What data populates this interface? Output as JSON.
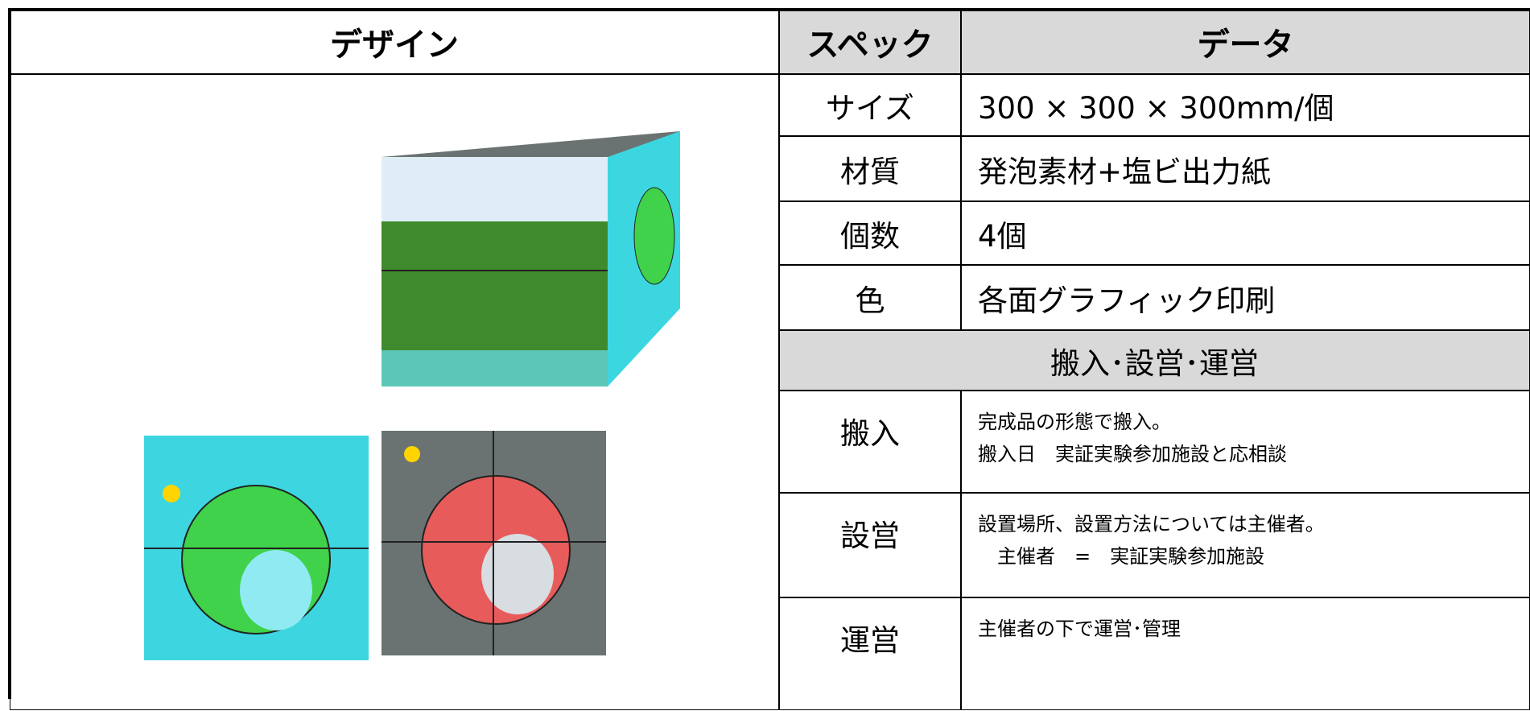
{
  "table": {
    "headers": [
      "デザイン",
      "スペック",
      "データ"
    ],
    "rows": [
      [
        "サイズ",
        "300 × 300 × 300mm/個"
      ],
      [
        "材質",
        "発泡素材+塩ビ出力紙"
      ],
      [
        "個数",
        "4個"
      ],
      [
        "色",
        "各面グラフィック印刷"
      ]
    ],
    "section": "搬入･設営･運営",
    "notes": [
      {
        "label": "搬入",
        "lines": [
          "完成品の形態で搬入。",
          "搬入日　実証実験参加施設と応相談"
        ]
      },
      {
        "label": "設営",
        "lines": [
          "設置場所、設置方法については主催者。",
          "　主催者　=　実証実験参加施設"
        ]
      },
      {
        "label": "運営",
        "lines": [
          "主催者の下で運営･管理"
        ]
      }
    ]
  }
}
